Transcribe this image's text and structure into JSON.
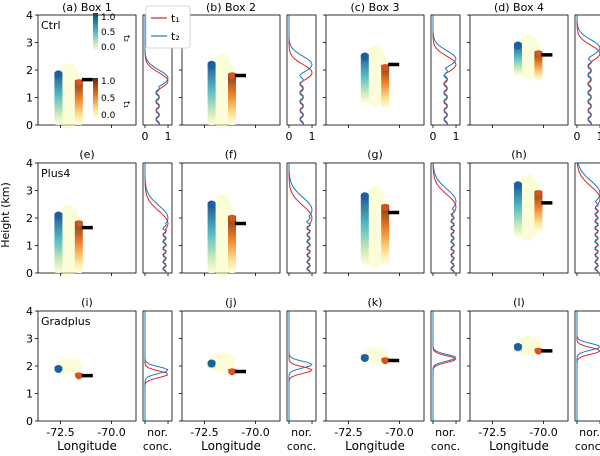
{
  "figure": {
    "ylabel": "Height (km)",
    "xlabel": "Longitude",
    "conc_xlabel_line1": "nor.",
    "conc_xlabel_line2": "conc.",
    "legend": [
      {
        "label": "t₁",
        "color": "#d62728"
      },
      {
        "label": "t₂",
        "color": "#1f77b4"
      }
    ],
    "colorbars": [
      {
        "label": "t₂",
        "ticks": [
          "1.0",
          "0.5",
          "0.0"
        ],
        "colormap": "YlGnBu"
      },
      {
        "label": "t₁",
        "ticks": [
          "1.0",
          "0.5",
          "0.0"
        ],
        "colormap": "YlOrBr"
      }
    ],
    "colors": {
      "t1_line": "#d62728",
      "t2_line": "#1f77b4",
      "marker": "#000000"
    }
  },
  "chart_data": {
    "type": "heatmap",
    "y_range_km": [
      0,
      4
    ],
    "y_ticks": [
      "0",
      "1",
      "2",
      "3",
      "4"
    ],
    "lon_ticks": [
      "-72.5",
      "-70.0"
    ],
    "conc_ticks": [
      "0",
      "1"
    ],
    "rows": [
      {
        "name": "Ctrl",
        "panels": [
          {
            "label": "(a) Box 1",
            "t2_top_km": 1.95,
            "t2_bottom_km": 0.0,
            "t1_top_km": 1.65,
            "t1_bottom_km": 0.0,
            "marker_height_km": 1.65,
            "conc_t1_peak_km": 1.6,
            "conc_t2_peak_km": 1.7
          },
          {
            "label": "(b) Box 2",
            "t2_top_km": 2.3,
            "t2_bottom_km": 0.0,
            "t1_top_km": 1.9,
            "t1_bottom_km": 0.0,
            "marker_height_km": 1.8,
            "conc_t1_peak_km": 1.9,
            "conc_t2_peak_km": 2.2
          },
          {
            "label": "(c) Box 3",
            "t2_top_km": 2.6,
            "t2_bottom_km": 0.8,
            "t1_top_km": 2.2,
            "t1_bottom_km": 0.6,
            "marker_height_km": 2.2,
            "conc_t1_peak_km": 2.2,
            "conc_t2_peak_km": 2.4
          },
          {
            "label": "(d) Box 4",
            "t2_top_km": 3.0,
            "t2_bottom_km": 1.8,
            "t1_top_km": 2.7,
            "t1_bottom_km": 1.6,
            "marker_height_km": 2.55,
            "conc_t1_peak_km": 2.6,
            "conc_t2_peak_km": 2.8
          }
        ]
      },
      {
        "name": "Plus4",
        "panels": [
          {
            "label": "(e)",
            "t2_top_km": 2.2,
            "t2_bottom_km": 0.0,
            "t1_top_km": 1.9,
            "t1_bottom_km": 0.0,
            "marker_height_km": 1.65,
            "conc_t1_peak_km": 1.8,
            "conc_t2_peak_km": 2.0
          },
          {
            "label": "(f)",
            "t2_top_km": 2.6,
            "t2_bottom_km": 0.0,
            "t1_top_km": 2.1,
            "t1_bottom_km": 0.0,
            "marker_height_km": 1.8,
            "conc_t1_peak_km": 2.0,
            "conc_t2_peak_km": 2.3
          },
          {
            "label": "(g)",
            "t2_top_km": 2.9,
            "t2_bottom_km": 0.3,
            "t1_top_km": 2.5,
            "t1_bottom_km": 0.3,
            "marker_height_km": 2.2,
            "conc_t1_peak_km": 2.4,
            "conc_t2_peak_km": 2.6
          },
          {
            "label": "(h)",
            "t2_top_km": 3.3,
            "t2_bottom_km": 1.3,
            "t1_top_km": 3.0,
            "t1_bottom_km": 1.5,
            "marker_height_km": 2.55,
            "conc_t1_peak_km": 2.7,
            "conc_t2_peak_km": 2.9
          }
        ]
      },
      {
        "name": "Gradplus",
        "panels": [
          {
            "label": "(i)",
            "t2_top_km": 2.0,
            "t2_bottom_km": 1.8,
            "t1_top_km": 1.75,
            "t1_bottom_km": 1.55,
            "marker_height_km": 1.65,
            "conc_t1_peak_km": 1.7,
            "conc_t2_peak_km": 1.85
          },
          {
            "label": "(j)",
            "t2_top_km": 2.2,
            "t2_bottom_km": 1.9,
            "t1_top_km": 1.9,
            "t1_bottom_km": 1.7,
            "marker_height_km": 1.8,
            "conc_t1_peak_km": 1.85,
            "conc_t2_peak_km": 2.05
          },
          {
            "label": "(k)",
            "t2_top_km": 2.4,
            "t2_bottom_km": 2.2,
            "t1_top_km": 2.3,
            "t1_bottom_km": 2.1,
            "marker_height_km": 2.2,
            "conc_t1_peak_km": 2.25,
            "conc_t2_peak_km": 2.3
          },
          {
            "label": "(l)",
            "t2_top_km": 2.8,
            "t2_bottom_km": 2.5,
            "t1_top_km": 2.65,
            "t1_bottom_km": 2.45,
            "marker_height_km": 2.55,
            "conc_t1_peak_km": 2.55,
            "conc_t2_peak_km": 2.7
          }
        ]
      }
    ]
  }
}
